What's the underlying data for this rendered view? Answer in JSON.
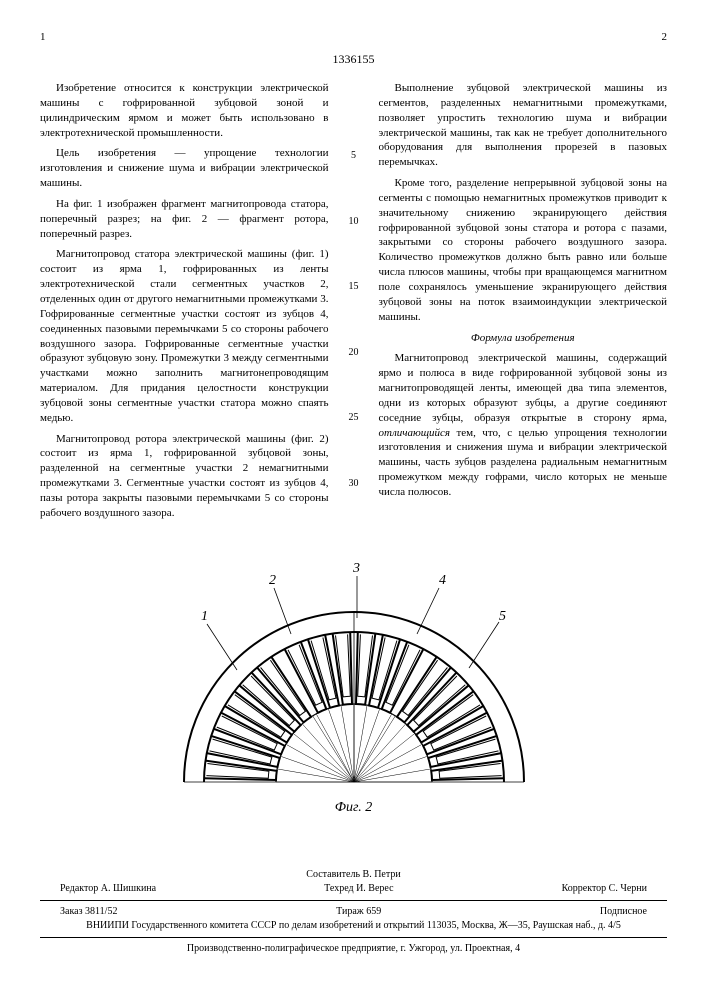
{
  "header": {
    "page_left": "1",
    "page_right": "2",
    "doc_number": "1336155"
  },
  "col_left": {
    "p1": "Изобретение относится к конструкции электрической машины с гофрированной зубцовой зоной и цилиндрическим ярмом и может быть использовано в электротехнической промышленности.",
    "p2": "Цель изобретения — упрощение технологии изготовления и снижение шума и вибрации электрической машины.",
    "p3": "На фиг. 1 изображен фрагмент магнитопровода статора, поперечный разрез; на фиг. 2 — фрагмент ротора, поперечный разрез.",
    "p4": "Магнитопровод статора электрической машины (фиг. 1) состоит из ярма 1, гофрированных из ленты электротехнической стали сегментных участков 2, отделенных один от другого немагнитными промежутками 3. Гофрированные сегментные участки состоят из зубцов 4, соединенных пазовыми перемычками 5 со стороны рабочего воздушного зазора. Гофрированные сегментные участки образуют зубцовую зону. Промежутки 3 между сегментными участками можно заполнить магнитонепроводящим материалом. Для придания целостности конструкции зубцовой зоны сегментные участки статора можно спаять медью.",
    "p5": "Магнитопровод ротора электрической машины (фиг. 2) состоит из ярма 1, гофрированной зубцовой зоны, разделенной на сегментные участки 2 немагнитными промежутками 3. Сегментные участки состоят из зубцов 4, пазы ротора закрыты пазовыми перемычками 5 со стороны рабочего воздушного зазора."
  },
  "col_right": {
    "p1": "Выполнение зубцовой электрической машины из сегментов, разделенных немагнитными промежутками, позволяет упростить технологию шума и вибрации электрической машины, так как не требует дополнительного оборудования для выполнения прорезей в пазовых перемычках.",
    "p2": "Кроме того, разделение непрерывной зубцовой зоны на сегменты с помощью немагнитных промежутков приводит к значительному снижению экранирующего действия гофрированной зубцовой зоны статора и ротора с пазами, закрытыми со стороны рабочего воздушного зазора. Количество промежутков должно быть равно или больше числа плюсов машины, чтобы при вращающемся магнитном поле сохранялось уменьшение экранирующего действия зубцовой зоны на поток взаимоиндукции электрической машины.",
    "formula_title": "Формула изобретения",
    "p3": "Магнитопровод электрической машины, содержащий ярмо и полюса в виде гофрированной зубцовой зоны из магнитопроводящей ленты, имеющей два типа элементов, одни из которых образуют зубцы, а другие соединяют соседние зубцы, образуя открытые в сторону ярма, ",
    "p3_em": "отличающийся",
    "p3_tail": " тем, что, с целью упрощения технологии изготовления и снижения шума и вибрации электрической машины, часть зубцов разделена радиальным немагнитным промежутком между гофрами, число которых не меньше числа полюсов."
  },
  "line_marks": [
    "5",
    "10",
    "15",
    "20",
    "25",
    "30"
  ],
  "figure": {
    "caption": "Фиг. 2",
    "labels": [
      "1",
      "2",
      "3",
      "4",
      "5"
    ],
    "colors": {
      "stroke": "#000000",
      "background": "#ffffff"
    },
    "geometry": {
      "outer_radius": 170,
      "inner_yoke_radius": 150,
      "slot_inner_radius": 78,
      "segment_count": 3,
      "teeth_per_segment": 6,
      "gap_angle_deg": 3
    }
  },
  "footer": {
    "author": "Составитель В. Петри",
    "editor": "Редактор А. Шишкина",
    "tech": "Техред И. Верес",
    "corrector": "Корректор С. Черни",
    "order": "Заказ 3811/52",
    "tirazh": "Тираж 659",
    "sub": "Подписное",
    "org": "ВНИИПИ Государственного комитета СССР по делам изобретений и открытий 113035, Москва, Ж—35, Раушская наб., д. 4/5",
    "print": "Производственно-полиграфическое предприятие, г. Ужгород, ул. Проектная, 4"
  }
}
